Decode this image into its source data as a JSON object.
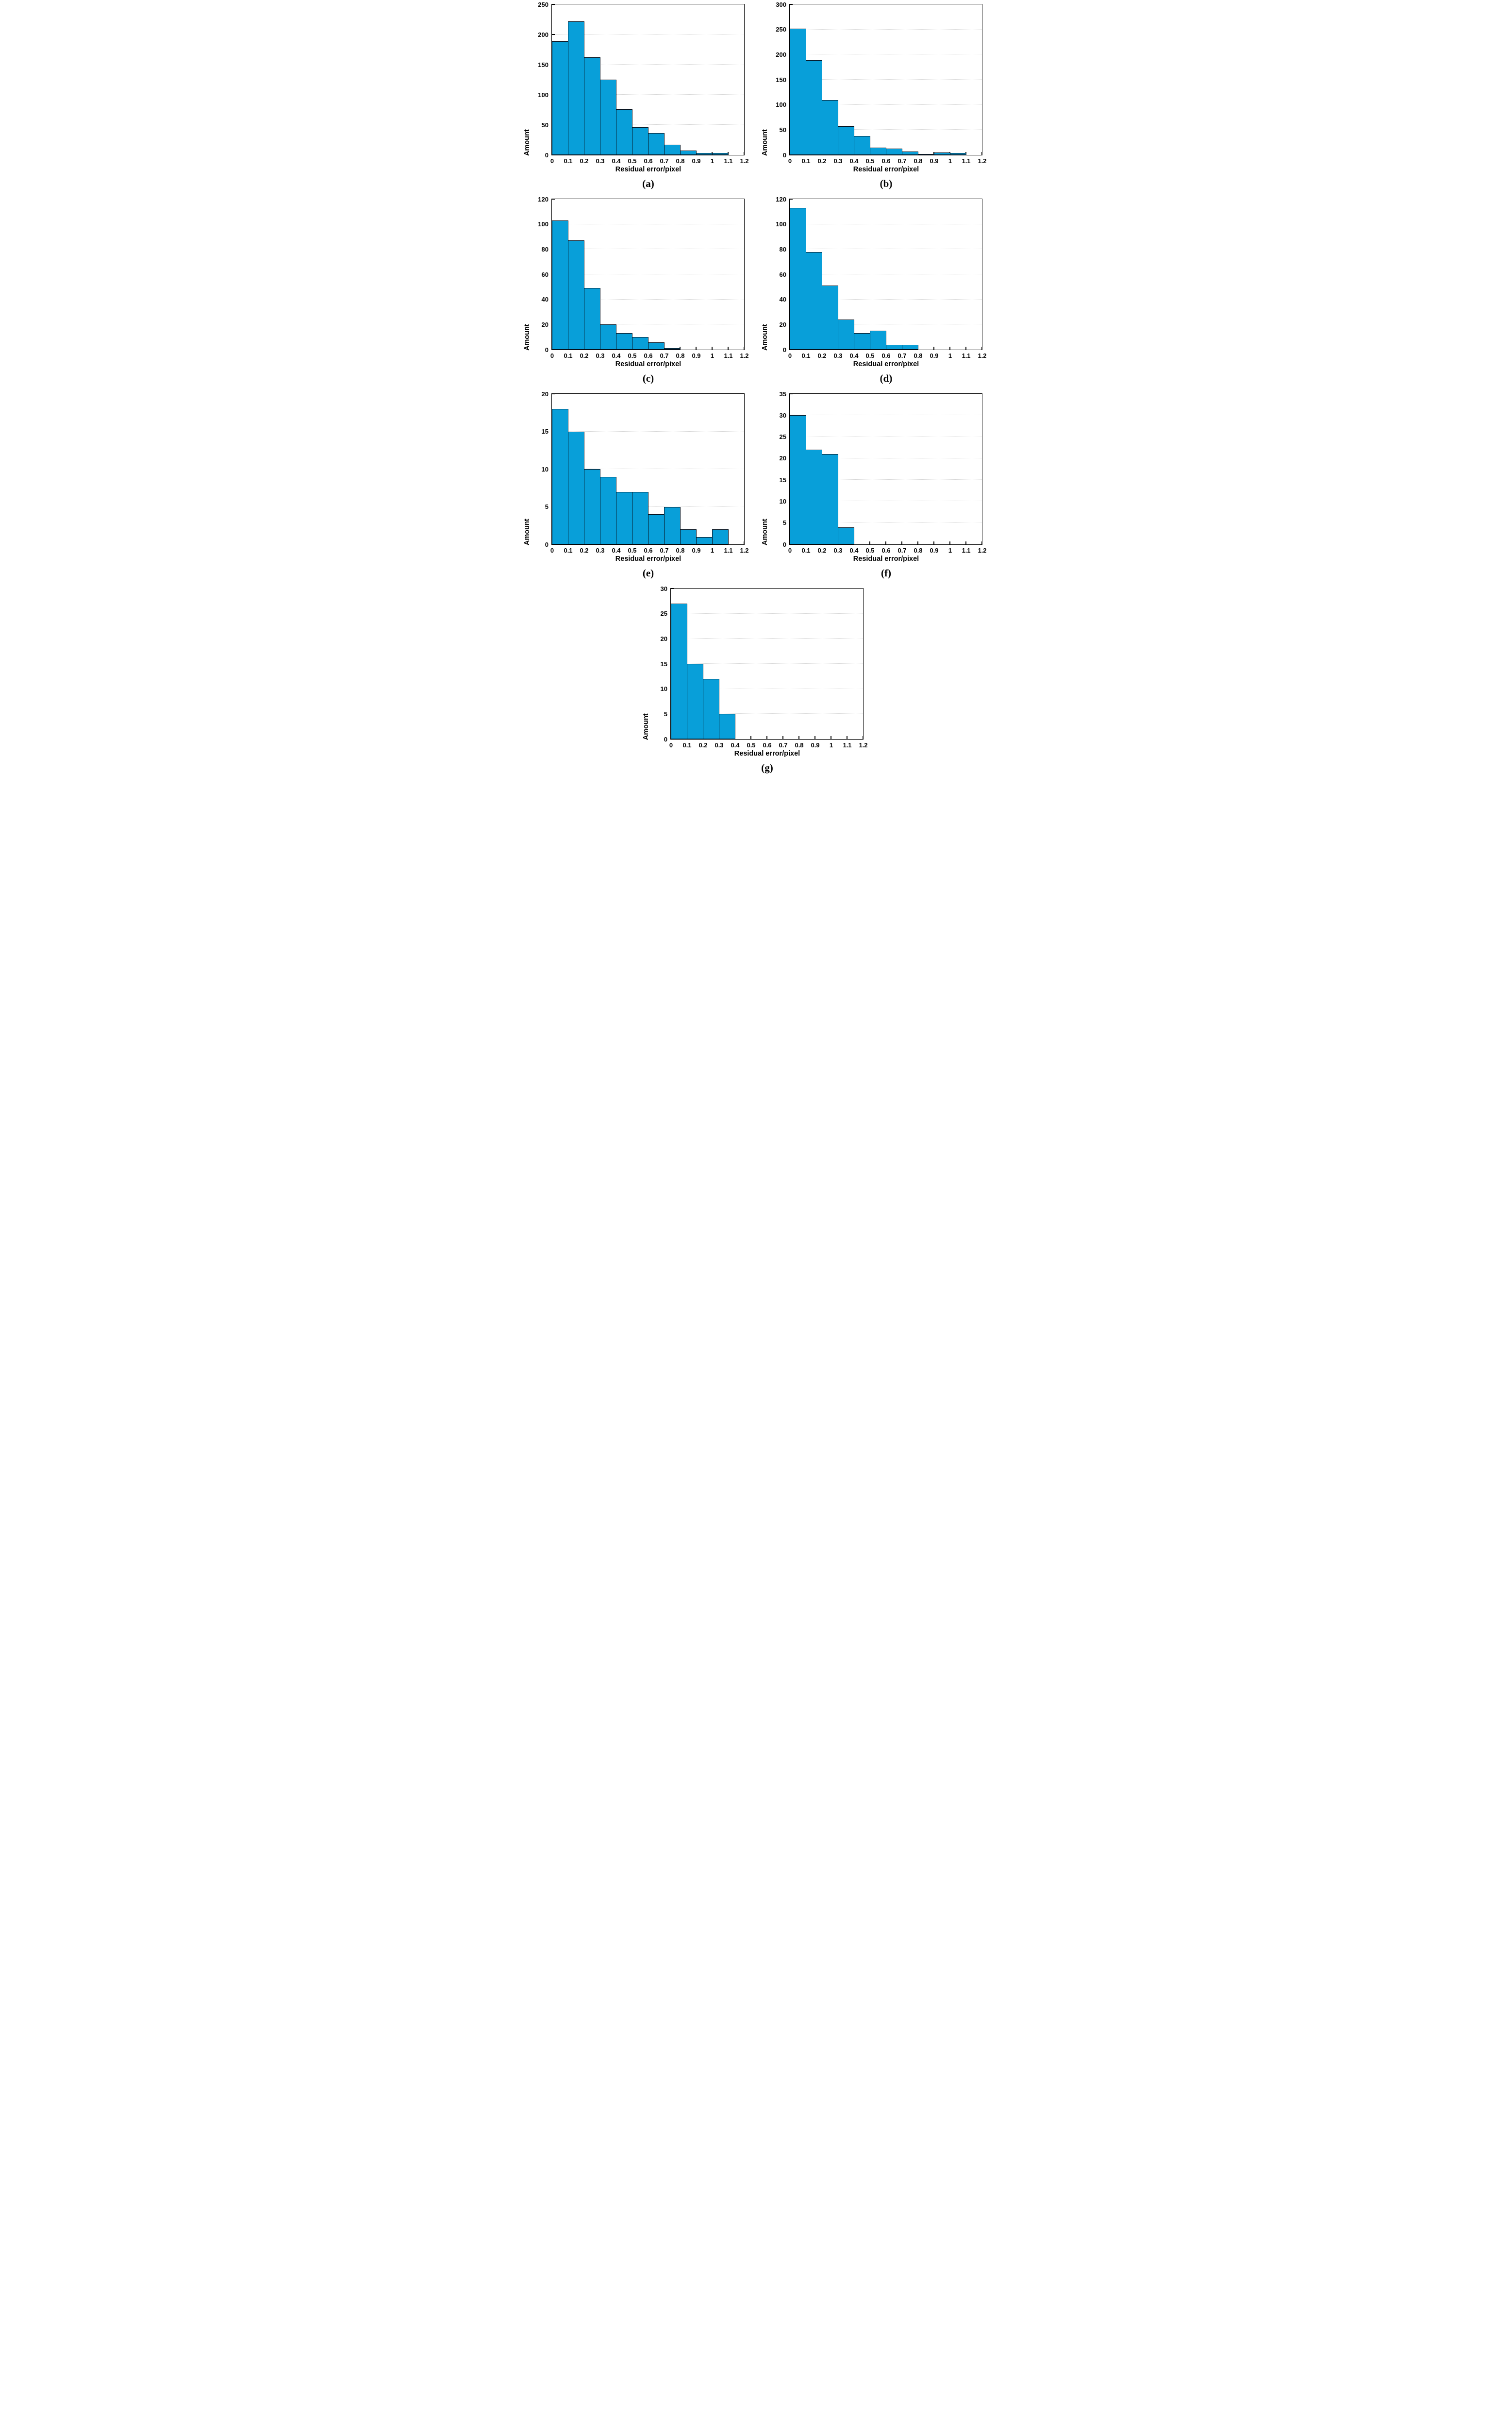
{
  "figure": {
    "background": "#ffffff",
    "bar_fill": "#089fd9",
    "bar_edge": "#061320",
    "grid_color": "#d4d4d4",
    "axis_color": "#000000",
    "xlabel": "Residual error/pixel",
    "ylabel": "Amount",
    "xlim": [
      0,
      1.2
    ],
    "bin_width": 0.1,
    "x_tick_labels": [
      "0",
      "0.1",
      "0.2",
      "0.3",
      "0.4",
      "0.5",
      "0.6",
      "0.7",
      "0.8",
      "0.9",
      "1",
      "1.1",
      "1.2"
    ],
    "grid": "horizontal-only",
    "legend": "none"
  },
  "chart_data": [
    {
      "id": "a",
      "type": "bar",
      "caption": "(a)",
      "xlabel": "Residual error/pixel",
      "ylabel": "Amount",
      "bin_start": 0,
      "bin_width": 0.1,
      "xlim": [
        0,
        1.2
      ],
      "ylim": [
        0,
        250
      ],
      "yticks": [
        0,
        50,
        100,
        150,
        200,
        250
      ],
      "values": [
        189,
        222,
        162,
        125,
        76,
        46,
        36,
        17,
        7,
        3,
        3
      ]
    },
    {
      "id": "b",
      "type": "bar",
      "caption": "(b)",
      "xlabel": "Residual error/pixel",
      "ylabel": "Amount",
      "bin_start": 0,
      "bin_width": 0.1,
      "xlim": [
        0,
        1.2
      ],
      "ylim": [
        0,
        300
      ],
      "yticks": [
        0,
        50,
        100,
        150,
        200,
        250,
        300
      ],
      "values": [
        252,
        189,
        109,
        57,
        38,
        15,
        13,
        7,
        1,
        5,
        4
      ]
    },
    {
      "id": "c",
      "type": "bar",
      "caption": "(c)",
      "xlabel": "Residual error/pixel",
      "ylabel": "Amount",
      "bin_start": 0,
      "bin_width": 0.1,
      "xlim": [
        0,
        1.2
      ],
      "ylim": [
        0,
        120
      ],
      "yticks": [
        0,
        20,
        40,
        60,
        80,
        100,
        120
      ],
      "values": [
        103,
        87,
        49,
        20,
        13,
        10,
        6,
        1
      ]
    },
    {
      "id": "d",
      "type": "bar",
      "caption": "(d)",
      "xlabel": "Residual error/pixel",
      "ylabel": "Amount",
      "bin_start": 0,
      "bin_width": 0.1,
      "xlim": [
        0,
        1.2
      ],
      "ylim": [
        0,
        120
      ],
      "yticks": [
        0,
        20,
        40,
        60,
        80,
        100,
        120
      ],
      "values": [
        113,
        78,
        51,
        24,
        13,
        15,
        4,
        4
      ]
    },
    {
      "id": "e",
      "type": "bar",
      "caption": "(e)",
      "xlabel": "Residual error/pixel",
      "ylabel": "Amount",
      "bin_start": 0,
      "bin_width": 0.1,
      "xlim": [
        0,
        1.2
      ],
      "ylim": [
        0,
        20
      ],
      "yticks": [
        0,
        5,
        10,
        15,
        20
      ],
      "values": [
        18,
        15,
        10,
        9,
        7,
        7,
        4,
        5,
        2,
        1,
        2
      ]
    },
    {
      "id": "f",
      "type": "bar",
      "caption": "(f)",
      "xlabel": "Residual error/pixel",
      "ylabel": "Amount",
      "bin_start": 0,
      "bin_width": 0.1,
      "xlim": [
        0,
        1.2
      ],
      "ylim": [
        0,
        35
      ],
      "yticks": [
        0,
        5,
        10,
        15,
        20,
        25,
        30,
        35
      ],
      "values": [
        30,
        22,
        21,
        4
      ]
    },
    {
      "id": "g",
      "type": "bar",
      "caption": "(g)",
      "xlabel": "Residual error/pixel",
      "ylabel": "Amount",
      "bin_start": 0,
      "bin_width": 0.1,
      "xlim": [
        0,
        1.2
      ],
      "ylim": [
        0,
        30
      ],
      "yticks": [
        0,
        5,
        10,
        15,
        20,
        25,
        30
      ],
      "values": [
        27,
        15,
        12,
        5
      ]
    }
  ]
}
